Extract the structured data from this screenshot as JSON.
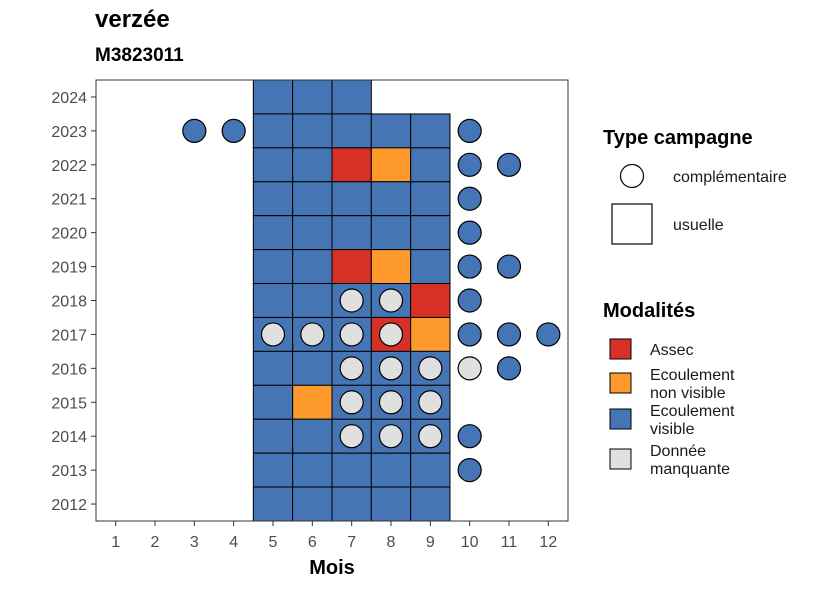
{
  "title": "verzée",
  "subtitle": "M3823011",
  "chart_data": {
    "type": "heatmap",
    "xlabel": "Mois",
    "ylabel": "",
    "x_ticks": [
      1,
      2,
      3,
      4,
      5,
      6,
      7,
      8,
      9,
      10,
      11,
      12
    ],
    "y_ticks": [
      2012,
      2013,
      2014,
      2015,
      2016,
      2017,
      2018,
      2019,
      2020,
      2021,
      2022,
      2023,
      2024
    ],
    "xlim": [
      0.5,
      12.5
    ],
    "ylim": [
      2011.5,
      2024.5
    ],
    "colors": {
      "assec": "#d73027",
      "ecoulement_non_visible": "#fd9a2b",
      "ecoulement_visible": "#4575b4",
      "donnee_manquante": "#e0e0e0"
    },
    "legend_placement": "right",
    "shape_legend": {
      "title": "Type campagne",
      "items": [
        {
          "label": "complémentaire",
          "shape": "circle"
        },
        {
          "label": "usuelle",
          "shape": "square"
        }
      ]
    },
    "color_legend": {
      "title": "Modalités",
      "items": [
        {
          "key": "assec",
          "lines": [
            "Assec"
          ]
        },
        {
          "key": "ecoulement_non_visible",
          "lines": [
            "Ecoulement",
            "non visible"
          ]
        },
        {
          "key": "ecoulement_visible",
          "lines": [
            "Ecoulement",
            "visible"
          ]
        },
        {
          "key": "donnee_manquante",
          "lines": [
            "Donnée",
            "manquante"
          ]
        }
      ]
    },
    "squares": [
      {
        "year": 2024,
        "month": 5,
        "m": "ecoulement_visible"
      },
      {
        "year": 2024,
        "month": 6,
        "m": "ecoulement_visible"
      },
      {
        "year": 2024,
        "month": 7,
        "m": "ecoulement_visible"
      },
      {
        "year": 2023,
        "month": 5,
        "m": "ecoulement_visible"
      },
      {
        "year": 2023,
        "month": 6,
        "m": "ecoulement_visible"
      },
      {
        "year": 2023,
        "month": 7,
        "m": "ecoulement_visible"
      },
      {
        "year": 2023,
        "month": 8,
        "m": "ecoulement_visible"
      },
      {
        "year": 2023,
        "month": 9,
        "m": "ecoulement_visible"
      },
      {
        "year": 2022,
        "month": 5,
        "m": "ecoulement_visible"
      },
      {
        "year": 2022,
        "month": 6,
        "m": "ecoulement_visible"
      },
      {
        "year": 2022,
        "month": 7,
        "m": "assec"
      },
      {
        "year": 2022,
        "month": 8,
        "m": "ecoulement_non_visible"
      },
      {
        "year": 2022,
        "month": 9,
        "m": "ecoulement_visible"
      },
      {
        "year": 2021,
        "month": 5,
        "m": "ecoulement_visible"
      },
      {
        "year": 2021,
        "month": 6,
        "m": "ecoulement_visible"
      },
      {
        "year": 2021,
        "month": 7,
        "m": "ecoulement_visible"
      },
      {
        "year": 2021,
        "month": 8,
        "m": "ecoulement_visible"
      },
      {
        "year": 2021,
        "month": 9,
        "m": "ecoulement_visible"
      },
      {
        "year": 2020,
        "month": 5,
        "m": "ecoulement_visible"
      },
      {
        "year": 2020,
        "month": 6,
        "m": "ecoulement_visible"
      },
      {
        "year": 2020,
        "month": 7,
        "m": "ecoulement_visible"
      },
      {
        "year": 2020,
        "month": 8,
        "m": "ecoulement_visible"
      },
      {
        "year": 2020,
        "month": 9,
        "m": "ecoulement_visible"
      },
      {
        "year": 2019,
        "month": 5,
        "m": "ecoulement_visible"
      },
      {
        "year": 2019,
        "month": 6,
        "m": "ecoulement_visible"
      },
      {
        "year": 2019,
        "month": 7,
        "m": "assec"
      },
      {
        "year": 2019,
        "month": 8,
        "m": "ecoulement_non_visible"
      },
      {
        "year": 2019,
        "month": 9,
        "m": "ecoulement_visible"
      },
      {
        "year": 2018,
        "month": 5,
        "m": "ecoulement_visible"
      },
      {
        "year": 2018,
        "month": 6,
        "m": "ecoulement_visible"
      },
      {
        "year": 2018,
        "month": 7,
        "m": "ecoulement_visible"
      },
      {
        "year": 2018,
        "month": 8,
        "m": "ecoulement_visible"
      },
      {
        "year": 2018,
        "month": 9,
        "m": "assec"
      },
      {
        "year": 2017,
        "month": 5,
        "m": "ecoulement_visible"
      },
      {
        "year": 2017,
        "month": 6,
        "m": "ecoulement_visible"
      },
      {
        "year": 2017,
        "month": 7,
        "m": "ecoulement_visible"
      },
      {
        "year": 2017,
        "month": 8,
        "m": "assec"
      },
      {
        "year": 2017,
        "month": 9,
        "m": "ecoulement_non_visible"
      },
      {
        "year": 2016,
        "month": 5,
        "m": "ecoulement_visible"
      },
      {
        "year": 2016,
        "month": 6,
        "m": "ecoulement_visible"
      },
      {
        "year": 2016,
        "month": 7,
        "m": "ecoulement_visible"
      },
      {
        "year": 2016,
        "month": 8,
        "m": "ecoulement_visible"
      },
      {
        "year": 2016,
        "month": 9,
        "m": "ecoulement_visible"
      },
      {
        "year": 2015,
        "month": 5,
        "m": "ecoulement_visible"
      },
      {
        "year": 2015,
        "month": 6,
        "m": "ecoulement_non_visible"
      },
      {
        "year": 2015,
        "month": 7,
        "m": "ecoulement_visible"
      },
      {
        "year": 2015,
        "month": 8,
        "m": "ecoulement_visible"
      },
      {
        "year": 2015,
        "month": 9,
        "m": "ecoulement_visible"
      },
      {
        "year": 2014,
        "month": 5,
        "m": "ecoulement_visible"
      },
      {
        "year": 2014,
        "month": 6,
        "m": "ecoulement_visible"
      },
      {
        "year": 2014,
        "month": 7,
        "m": "ecoulement_visible"
      },
      {
        "year": 2014,
        "month": 8,
        "m": "ecoulement_visible"
      },
      {
        "year": 2014,
        "month": 9,
        "m": "ecoulement_visible"
      },
      {
        "year": 2013,
        "month": 5,
        "m": "ecoulement_visible"
      },
      {
        "year": 2013,
        "month": 6,
        "m": "ecoulement_visible"
      },
      {
        "year": 2013,
        "month": 7,
        "m": "ecoulement_visible"
      },
      {
        "year": 2013,
        "month": 8,
        "m": "ecoulement_visible"
      },
      {
        "year": 2013,
        "month": 9,
        "m": "ecoulement_visible"
      },
      {
        "year": 2012,
        "month": 5,
        "m": "ecoulement_visible"
      },
      {
        "year": 2012,
        "month": 6,
        "m": "ecoulement_visible"
      },
      {
        "year": 2012,
        "month": 7,
        "m": "ecoulement_visible"
      },
      {
        "year": 2012,
        "month": 8,
        "m": "ecoulement_visible"
      },
      {
        "year": 2012,
        "month": 9,
        "m": "ecoulement_visible"
      }
    ],
    "circles": [
      {
        "year": 2023,
        "month": 3,
        "m": "ecoulement_visible"
      },
      {
        "year": 2023,
        "month": 4,
        "m": "ecoulement_visible"
      },
      {
        "year": 2023,
        "month": 10,
        "m": "ecoulement_visible"
      },
      {
        "year": 2022,
        "month": 10,
        "m": "ecoulement_visible"
      },
      {
        "year": 2022,
        "month": 11,
        "m": "ecoulement_visible"
      },
      {
        "year": 2021,
        "month": 10,
        "m": "ecoulement_visible"
      },
      {
        "year": 2020,
        "month": 10,
        "m": "ecoulement_visible"
      },
      {
        "year": 2019,
        "month": 10,
        "m": "ecoulement_visible"
      },
      {
        "year": 2019,
        "month": 11,
        "m": "ecoulement_visible"
      },
      {
        "year": 2018,
        "month": 7,
        "m": "donnee_manquante"
      },
      {
        "year": 2018,
        "month": 8,
        "m": "donnee_manquante"
      },
      {
        "year": 2018,
        "month": 10,
        "m": "ecoulement_visible"
      },
      {
        "year": 2017,
        "month": 5,
        "m": "donnee_manquante"
      },
      {
        "year": 2017,
        "month": 6,
        "m": "donnee_manquante"
      },
      {
        "year": 2017,
        "month": 7,
        "m": "donnee_manquante"
      },
      {
        "year": 2017,
        "month": 8,
        "m": "donnee_manquante"
      },
      {
        "year": 2017,
        "month": 10,
        "m": "ecoulement_visible"
      },
      {
        "year": 2017,
        "month": 11,
        "m": "ecoulement_visible"
      },
      {
        "year": 2017,
        "month": 12,
        "m": "ecoulement_visible"
      },
      {
        "year": 2016,
        "month": 7,
        "m": "donnee_manquante"
      },
      {
        "year": 2016,
        "month": 8,
        "m": "donnee_manquante"
      },
      {
        "year": 2016,
        "month": 9,
        "m": "donnee_manquante"
      },
      {
        "year": 2016,
        "month": 10,
        "m": "donnee_manquante"
      },
      {
        "year": 2016,
        "month": 11,
        "m": "ecoulement_visible"
      },
      {
        "year": 2015,
        "month": 7,
        "m": "donnee_manquante"
      },
      {
        "year": 2015,
        "month": 8,
        "m": "donnee_manquante"
      },
      {
        "year": 2015,
        "month": 9,
        "m": "donnee_manquante"
      },
      {
        "year": 2014,
        "month": 7,
        "m": "donnee_manquante"
      },
      {
        "year": 2014,
        "month": 8,
        "m": "donnee_manquante"
      },
      {
        "year": 2014,
        "month": 9,
        "m": "donnee_manquante"
      },
      {
        "year": 2014,
        "month": 10,
        "m": "ecoulement_visible"
      },
      {
        "year": 2013,
        "month": 10,
        "m": "ecoulement_visible"
      }
    ]
  }
}
